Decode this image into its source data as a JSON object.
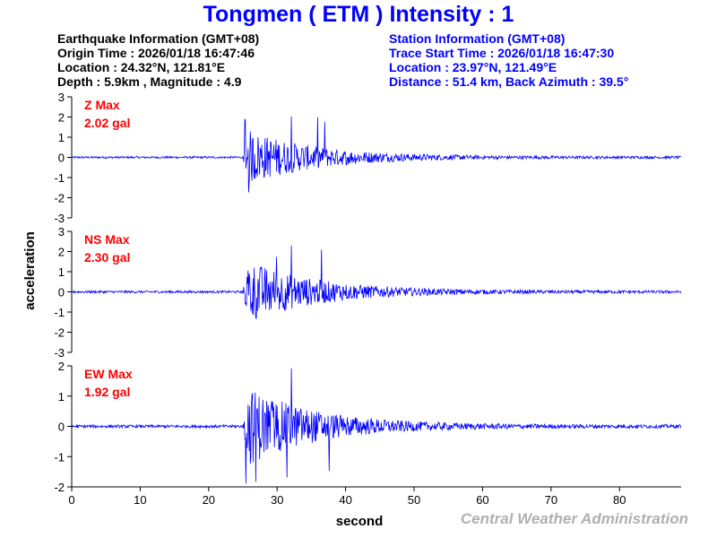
{
  "title": "Tongmen ( ETM ) Intensity : 1",
  "earthquake_info": {
    "heading": "Earthquake Information (GMT+08)",
    "origin_time": "Origin Time : 2026/01/18 16:47:46",
    "location": "Location : 24.32°N, 121.81°E",
    "depth_magnitude": "Depth : 5.9km , Magnitude : 4.9"
  },
  "station_info": {
    "heading": "Station Information (GMT+08)",
    "trace_start": "Trace Start Time : 2026/01/18 16:47:30",
    "location": "Location : 23.97°N, 121.49°E",
    "distance": "Distance : 51.4 km, Back Azimuth : 39.5°"
  },
  "credit": "Central Weather Administration",
  "colors": {
    "title": "#0000ff",
    "trace": "#0000ff",
    "max_label": "#ff0000",
    "credit": "#b0b0b0"
  },
  "chart_data": {
    "type": "line",
    "xlabel": "second",
    "ylabel": "acceleration",
    "xlim": [
      0,
      89
    ],
    "x_ticks": [
      "0",
      "10",
      "20",
      "30",
      "40",
      "50",
      "60",
      "70",
      "80"
    ],
    "grid": false,
    "onset_s": 25,
    "series": [
      {
        "name": "Z Max",
        "max_label": "2.02 gal",
        "peak": 2.02,
        "ylim": [
          -3,
          3
        ],
        "y_ticks": [
          "3",
          "2",
          "1",
          "0",
          "-1",
          "-2",
          "-3"
        ]
      },
      {
        "name": "NS Max",
        "max_label": "2.30 gal",
        "peak": 2.3,
        "ylim": [
          -3,
          3
        ],
        "y_ticks": [
          "3",
          "2",
          "1",
          "0",
          "-1",
          "-2",
          "-3"
        ]
      },
      {
        "name": "EW Max",
        "max_label": "1.92 gal",
        "peak": 1.92,
        "ylim": [
          -2,
          2
        ],
        "y_ticks": [
          "2",
          "1",
          "0",
          "-1",
          "-2"
        ]
      }
    ]
  }
}
